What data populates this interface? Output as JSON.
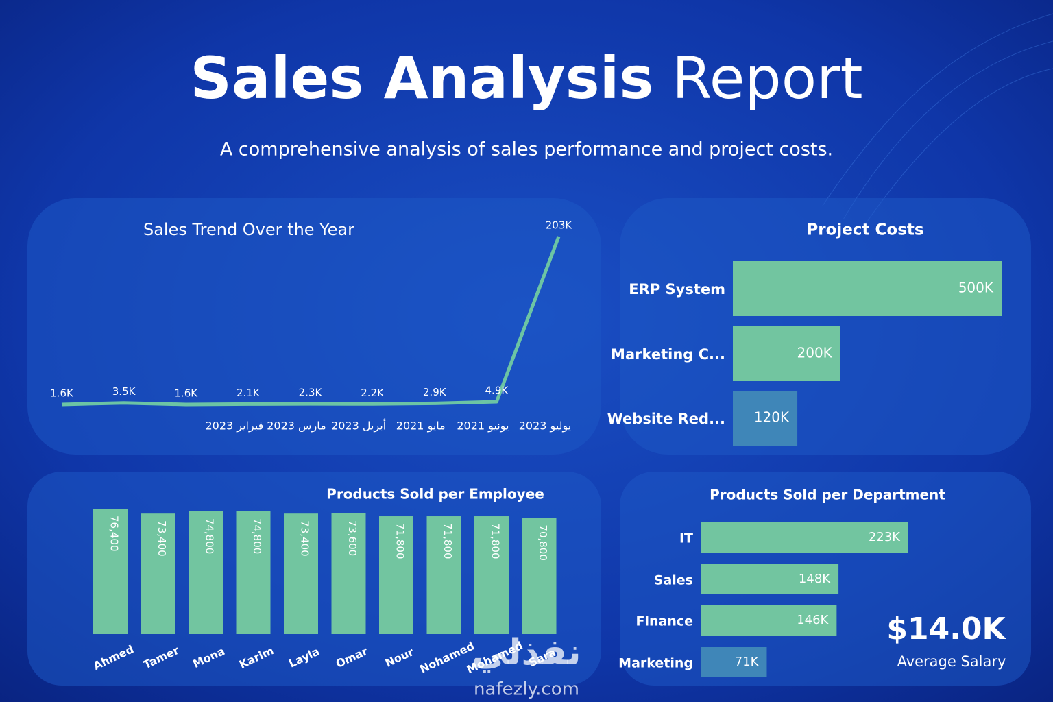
{
  "header": {
    "title_bold": "Sales Analysis",
    "title_light": "Report",
    "subtitle": "A comprehensive analysis of sales performance and project costs."
  },
  "chart_data": [
    {
      "type": "line",
      "title": "Sales Trend Over the Year",
      "categories": [
        null,
        null,
        null,
        "فبراير 2023",
        "مارس 2023",
        "أبريل 2023",
        "مايو 2021",
        "يونيو 2021",
        "يوليو 2023"
      ],
      "values": [
        1600,
        3500,
        1600,
        2100,
        2300,
        2200,
        2900,
        4900,
        203000
      ],
      "value_labels": [
        "1.6K",
        "3.5K",
        "1.6K",
        "2.1K",
        "2.3K",
        "2.2K",
        "2.9K",
        "4.9K",
        "203K"
      ],
      "color": "#6cc4a4"
    },
    {
      "type": "barh",
      "title": "Project Costs",
      "categories": [
        "ERP System",
        "Marketing C...",
        "Website Red..."
      ],
      "values": [
        500000,
        200000,
        120000
      ],
      "value_labels": [
        "500K",
        "200K",
        "120K"
      ],
      "colors": [
        "#72c5a0",
        "#72c5a0",
        "#3f86b8"
      ]
    },
    {
      "type": "bar",
      "title": "Products Sold per Employee",
      "categories": [
        "Ahmed",
        "Tamer",
        "Mona",
        "Karim",
        "Layla",
        "Omar",
        "Nour",
        "Nohamed",
        "Mohamed",
        "Sara"
      ],
      "values": [
        76400,
        73400,
        74800,
        74800,
        73400,
        73600,
        71800,
        71800,
        71800,
        70800
      ],
      "value_labels": [
        "76,400",
        "73,400",
        "74,800",
        "74,800",
        "73,400",
        "73,600",
        "71,800",
        "71,800",
        "71,800",
        "70,800"
      ],
      "color": "#72c5a0"
    },
    {
      "type": "barh",
      "title": "Products Sold per Department",
      "categories": [
        "IT",
        "Sales",
        "Finance",
        "Marketing"
      ],
      "values": [
        223000,
        148000,
        146000,
        71000
      ],
      "value_labels": [
        "223K",
        "148K",
        "146K",
        "71K"
      ],
      "colors": [
        "#72c5a0",
        "#72c5a0",
        "#72c5a0",
        "#3f86b8"
      ]
    }
  ],
  "kpi": {
    "value": "$14.0K",
    "label": "Average Salary"
  },
  "watermark": {
    "arabic": "نفذلي",
    "latin": "nafezly.com"
  }
}
